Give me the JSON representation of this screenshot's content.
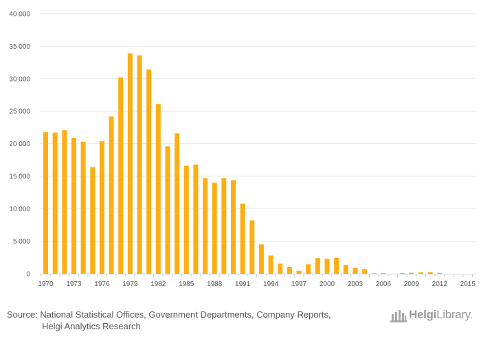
{
  "chart_data": {
    "type": "bar",
    "title": "",
    "xlabel": "",
    "ylabel": "",
    "ylim": [
      0,
      40000
    ],
    "y_ticks": [
      0,
      5000,
      10000,
      15000,
      20000,
      25000,
      30000,
      35000,
      40000
    ],
    "y_tick_labels": [
      "0",
      "5 000",
      "10 000",
      "15 000",
      "20 000",
      "25 000",
      "30 000",
      "35 000",
      "40 000"
    ],
    "x_tick_labels": [
      "1970",
      "1973",
      "1976",
      "1979",
      "1982",
      "1985",
      "1988",
      "1991",
      "1994",
      "1997",
      "2000",
      "2003",
      "2006",
      "2009",
      "2012",
      "2015"
    ],
    "categories": [
      1970,
      1971,
      1972,
      1973,
      1974,
      1975,
      1976,
      1977,
      1978,
      1979,
      1980,
      1981,
      1982,
      1983,
      1984,
      1985,
      1986,
      1987,
      1988,
      1989,
      1990,
      1991,
      1992,
      1993,
      1994,
      1995,
      1996,
      1997,
      1998,
      1999,
      2000,
      2001,
      2002,
      2003,
      2004,
      2005,
      2006,
      2007,
      2008,
      2009,
      2010,
      2011,
      2012,
      2013,
      2014,
      2015
    ],
    "values": [
      21800,
      21700,
      22100,
      20900,
      20300,
      16400,
      20400,
      24200,
      30200,
      33900,
      33600,
      31400,
      26100,
      19600,
      21600,
      16600,
      16800,
      14700,
      14000,
      14700,
      14400,
      10800,
      8200,
      4500,
      2800,
      1550,
      1050,
      450,
      1450,
      2400,
      2300,
      2450,
      1350,
      900,
      700,
      80,
      100,
      0,
      110,
      150,
      200,
      250,
      120,
      0,
      0,
      0
    ],
    "bar_color": "#FDAE12",
    "grid": true
  },
  "footer": {
    "source_line1": "Source: National Statistical Offices, Government Departments, Company Reports,",
    "source_line2": "Helgi Analytics Research"
  },
  "logo": {
    "brand_bold": "Helgi",
    "brand_regular": "Library.",
    "icon": "library-building-icon"
  }
}
